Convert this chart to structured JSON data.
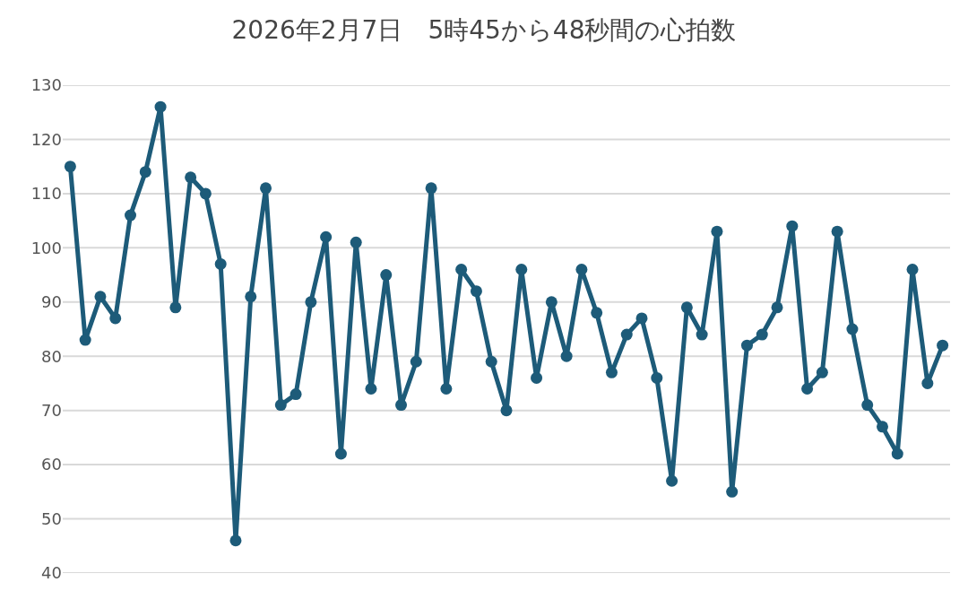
{
  "chart_data": {
    "type": "line",
    "title": "2026年2月7日　5時45から48秒間の心拍数",
    "categories": [
      null,
      null,
      null,
      null,
      null,
      null,
      null,
      null,
      null,
      null,
      null,
      null,
      null,
      null,
      null,
      null,
      null,
      null,
      null,
      null,
      null,
      null,
      null,
      null,
      null,
      null,
      null,
      null,
      null,
      null,
      null,
      null,
      null,
      null,
      null,
      null,
      null,
      null,
      null,
      null,
      null,
      null,
      null,
      null,
      null,
      null,
      null,
      null,
      null,
      null,
      null,
      null,
      null,
      null,
      null,
      null,
      null,
      null,
      null
    ],
    "series": [
      {
        "color": "#1d5b79",
        "values": [
          115,
          83,
          91,
          87,
          106,
          114,
          126,
          89,
          113,
          110,
          97,
          46,
          91,
          111,
          71,
          73,
          90,
          102,
          62,
          101,
          74,
          95,
          71,
          79,
          111,
          74,
          96,
          92,
          79,
          70,
          96,
          76,
          90,
          80,
          96,
          88,
          77,
          84,
          87,
          76,
          57,
          89,
          84,
          103,
          55,
          82,
          84,
          89,
          104,
          74,
          77,
          103,
          85,
          71,
          67,
          62,
          96,
          75,
          82
        ]
      }
    ],
    "ylim": [
      40,
      130
    ],
    "yticks": [
      40,
      50,
      60,
      70,
      80,
      90,
      100,
      110,
      120,
      130
    ],
    "grid": "y",
    "tick_labels": "y",
    "marker": "circle",
    "line_style": "solid"
  }
}
